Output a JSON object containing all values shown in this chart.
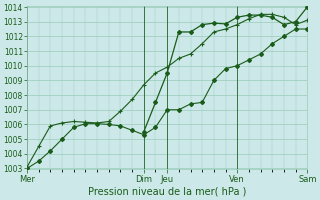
{
  "title": "Pression niveau de la mer( hPa )",
  "bg_color": "#cce8e8",
  "grid_color": "#99ccbb",
  "line_color": "#1a5c1a",
  "spine_color": "#99ccbb",
  "ylim": [
    1003,
    1014
  ],
  "yticks": [
    1003,
    1004,
    1005,
    1006,
    1007,
    1008,
    1009,
    1010,
    1011,
    1012,
    1013,
    1014
  ],
  "xtick_labels": [
    "Mer",
    "Dim",
    "Jeu",
    "Ven",
    "Sam"
  ],
  "xtick_positions": [
    0,
    5,
    6,
    9,
    12
  ],
  "vline_positions": [
    0,
    5,
    6,
    9,
    12
  ],
  "xlim": [
    0,
    12
  ],
  "line1_x": [
    0,
    0.5,
    1,
    1.5,
    2,
    2.5,
    3,
    3.5,
    4,
    4.5,
    5,
    5.5,
    6,
    6.5,
    7,
    7.5,
    8,
    8.5,
    9,
    9.5,
    10,
    10.5,
    11,
    11.5,
    12
  ],
  "line1_y": [
    1003.0,
    1003.5,
    1004.2,
    1005.0,
    1005.8,
    1006.05,
    1006.05,
    1006.0,
    1005.9,
    1005.6,
    1005.3,
    1005.8,
    1007.0,
    1007.0,
    1007.4,
    1007.5,
    1009.0,
    1009.8,
    1010.0,
    1010.4,
    1010.8,
    1011.5,
    1012.0,
    1012.5,
    1012.5
  ],
  "line2_x": [
    0,
    0.5,
    1,
    1.5,
    2,
    2.5,
    3,
    3.5,
    4,
    4.5,
    5,
    5.5,
    6,
    6.5,
    7,
    7.5,
    8,
    8.5,
    9,
    9.5,
    10,
    10.5,
    11,
    11.5,
    12
  ],
  "line2_y": [
    1003.1,
    1004.5,
    1005.9,
    1006.1,
    1006.2,
    1006.15,
    1006.1,
    1006.2,
    1006.9,
    1007.7,
    1008.7,
    1009.5,
    1009.9,
    1010.5,
    1010.8,
    1011.5,
    1012.3,
    1012.5,
    1012.8,
    1013.2,
    1013.5,
    1013.5,
    1013.3,
    1012.8,
    1013.1
  ],
  "line3_x": [
    5,
    5.5,
    6,
    6.5,
    7,
    7.5,
    8,
    8.5,
    9,
    9.5,
    10,
    10.5,
    11,
    11.5,
    12
  ],
  "line3_y": [
    1005.5,
    1007.5,
    1009.5,
    1012.3,
    1012.3,
    1012.8,
    1012.9,
    1012.85,
    1013.3,
    1013.45,
    1013.45,
    1013.3,
    1012.8,
    1013.0,
    1014.0
  ]
}
